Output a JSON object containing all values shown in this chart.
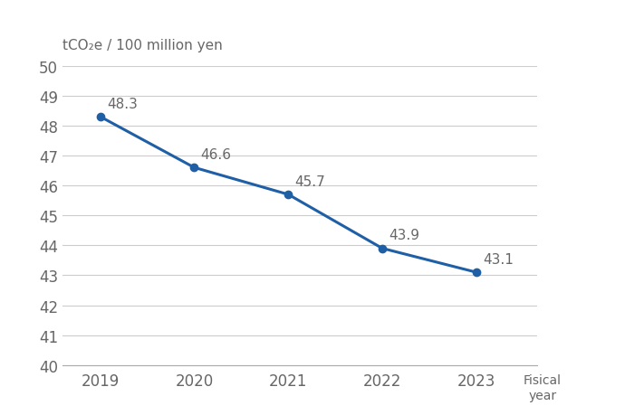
{
  "years": [
    2019,
    2020,
    2021,
    2022,
    2023
  ],
  "values": [
    48.3,
    46.6,
    45.7,
    43.9,
    43.1
  ],
  "ylabel": "tCO₂e / 100 million yen",
  "xlabel_line1": "Fisical",
  "xlabel_line2": "year",
  "ylim": [
    40,
    50
  ],
  "yticks": [
    40,
    41,
    42,
    43,
    44,
    45,
    46,
    47,
    48,
    49,
    50
  ],
  "line_color": "#1f5fa6",
  "marker_color": "#1f5fa6",
  "label_color": "#666666",
  "bg_color": "#ffffff",
  "grid_color": "#cccccc",
  "tick_label_color": "#666666",
  "line_width": 2.2,
  "marker_size": 6,
  "data_label_fontsize": 11,
  "axis_label_fontsize": 11,
  "tick_fontsize": 12,
  "xlabel_fontsize": 10
}
